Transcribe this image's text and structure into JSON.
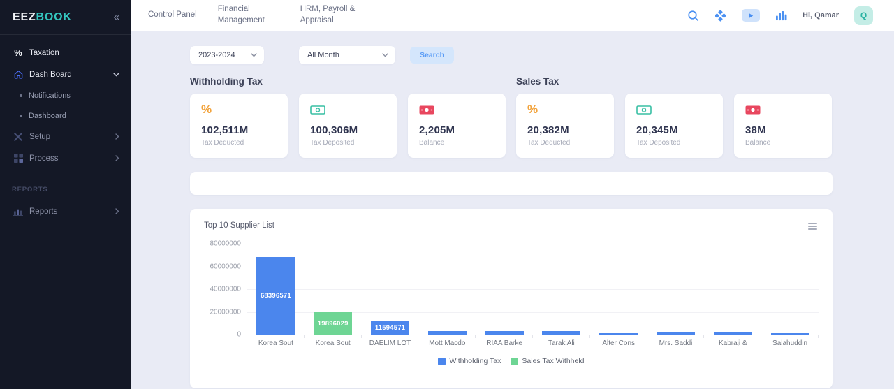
{
  "colors": {
    "accent_blue": "#4a90f2",
    "bar_blue": "#4b86ed",
    "bar_green": "#6ed594",
    "teal_logo": "#35c7c0",
    "orange": "#f2a33c",
    "teal_icon": "#38bfa4",
    "red": "#e8475f",
    "sidebar_bg": "#141826",
    "content_bg": "#e9ebf5"
  },
  "sidebar": {
    "logo_part1": "EEZ",
    "logo_part2": "BOOK",
    "collapse_glyph": "«",
    "items": [
      {
        "type": "item",
        "icon": "percent-icon",
        "label": "Taxation",
        "bright": true,
        "chevron": ""
      },
      {
        "type": "item",
        "icon": "home-icon",
        "label": "Dash Board",
        "bright": true,
        "chevron": "down"
      },
      {
        "type": "sub",
        "label": "Notifications"
      },
      {
        "type": "sub",
        "label": "Dashboard"
      },
      {
        "type": "item",
        "icon": "tools-icon",
        "label": "Setup",
        "bright": false,
        "chevron": "right"
      },
      {
        "type": "item",
        "icon": "grid-icon",
        "label": "Process",
        "bright": false,
        "chevron": "right"
      },
      {
        "type": "label",
        "label": "REPORTS"
      },
      {
        "type": "item",
        "icon": "bar-chart-icon",
        "label": "Reports",
        "bright": false,
        "chevron": "right"
      }
    ]
  },
  "header": {
    "tabs": [
      {
        "label": "Control Panel",
        "wrap": false
      },
      {
        "label": "Financial Management",
        "wrap": true
      },
      {
        "label": "HRM, Payroll & Appraisal",
        "wrap": true
      }
    ],
    "action_icons": [
      "search-icon",
      "apps-icon",
      "video-icon",
      "stats-icon"
    ],
    "greeting": "Hi, Qamar",
    "avatar_initial": "Q"
  },
  "filters": {
    "year_value": "2023-2024",
    "month_value": "All Month",
    "search_label": "Search"
  },
  "sections": [
    {
      "title": "Withholding Tax",
      "cards": [
        {
          "icon": "percent-orange-icon",
          "value": "102,511M",
          "label": "Tax Deducted"
        },
        {
          "icon": "banknote-teal-icon",
          "value": "100,306M",
          "label": "Tax Deposited"
        },
        {
          "icon": "banknote-red-icon",
          "value": "2,205M",
          "label": "Balance"
        }
      ]
    },
    {
      "title": "Sales Tax",
      "cards": [
        {
          "icon": "percent-orange-icon",
          "value": "20,382M",
          "label": "Tax Deducted"
        },
        {
          "icon": "banknote-teal-icon",
          "value": "20,345M",
          "label": "Tax Deposited"
        },
        {
          "icon": "banknote-red-icon",
          "value": "38M",
          "label": "Balance"
        }
      ]
    }
  ],
  "chart_data": {
    "type": "bar",
    "title": "Top 10 Supplier List",
    "categories": [
      "Korea Sout",
      "Korea Sout",
      "DAELIM LOT",
      "Mott Macdo",
      "RIAA Barke",
      "Tarak Ali",
      "Alter Cons",
      "Mrs. Saddi",
      "Kabraji &",
      "Salahuddin"
    ],
    "bars": [
      {
        "value": 68396571,
        "series": "Withholding Tax",
        "value_label": "68396571"
      },
      {
        "value": 19896029,
        "series": "Sales Tax Withheld",
        "value_label": "19896029"
      },
      {
        "value": 11594571,
        "series": "Withholding Tax",
        "value_label": "11594571"
      },
      {
        "value": 3200000,
        "series": "Withholding Tax",
        "value_label": ""
      },
      {
        "value": 3000000,
        "series": "Withholding Tax",
        "value_label": ""
      },
      {
        "value": 3000000,
        "series": "Withholding Tax",
        "value_label": ""
      },
      {
        "value": 1500000,
        "series": "Withholding Tax",
        "value_label": ""
      },
      {
        "value": 1800000,
        "series": "Withholding Tax",
        "value_label": ""
      },
      {
        "value": 1800000,
        "series": "Withholding Tax",
        "value_label": ""
      },
      {
        "value": 1500000,
        "series": "Withholding Tax",
        "value_label": ""
      }
    ],
    "y_tick_labels": [
      "80000000",
      "60000000",
      "40000000",
      "20000000",
      "0"
    ],
    "ylim": [
      0,
      80000000
    ],
    "grid": true,
    "legend_position": "bottom",
    "series_colors": {
      "Withholding Tax": "#4b86ed",
      "Sales Tax Withheld": "#6ed594"
    },
    "legend": [
      {
        "name": "Withholding Tax",
        "color": "#4b86ed"
      },
      {
        "name": "Sales Tax Withheld",
        "color": "#6ed594"
      }
    ]
  }
}
